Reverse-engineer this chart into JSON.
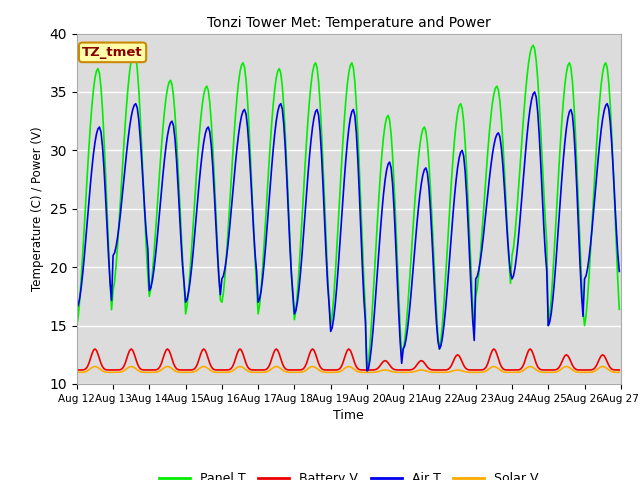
{
  "title": "Tonzi Tower Met: Temperature and Power",
  "xlabel": "Time",
  "ylabel": "Temperature (C) / Power (V)",
  "xlim_start": 0,
  "xlim_end": 360,
  "ylim": [
    10,
    40
  ],
  "yticks": [
    10,
    15,
    20,
    25,
    30,
    35,
    40
  ],
  "background_color": "#dcdcdc",
  "figure_color": "#ffffff",
  "annotation_text": "TZ_tmet",
  "annotation_facecolor": "#ffffaa",
  "annotation_edgecolor": "#cc8800",
  "annotation_textcolor": "#880000",
  "x_tick_labels": [
    "Aug 12",
    "Aug 13",
    "Aug 14",
    "Aug 15",
    "Aug 16",
    "Aug 17",
    "Aug 18",
    "Aug 19",
    "Aug 20",
    "Aug 21",
    "Aug 22",
    "Aug 23",
    "Aug 24",
    "Aug 25",
    "Aug 26",
    "Aug 27"
  ],
  "x_tick_positions": [
    0,
    24,
    48,
    72,
    96,
    120,
    144,
    168,
    192,
    216,
    240,
    264,
    288,
    312,
    336,
    360
  ],
  "panel_t_color": "#00ee00",
  "battery_v_color": "#ee0000",
  "air_t_color": "#0000ee",
  "solar_v_color": "#ffaa00",
  "line_width": 1.2,
  "legend_entries": [
    "Panel T",
    "Battery V",
    "Air T",
    "Solar V"
  ],
  "panel_t_peaks": [
    37.0,
    38.5,
    36.0,
    35.5,
    37.5,
    37.0,
    37.5,
    37.5,
    33.0,
    32.0,
    34.0,
    35.5,
    39.0,
    37.5,
    37.5
  ],
  "panel_t_mins": [
    15.0,
    18.0,
    17.5,
    16.0,
    17.0,
    16.0,
    15.5,
    15.0,
    11.0,
    13.0,
    13.0,
    17.5,
    21.0,
    15.0,
    15.0
  ],
  "air_t_peaks": [
    32.0,
    34.0,
    32.5,
    32.0,
    33.5,
    34.0,
    33.5,
    33.5,
    29.0,
    28.5,
    30.0,
    31.5,
    35.0,
    33.5,
    34.0
  ],
  "air_t_mins": [
    16.5,
    21.0,
    18.0,
    17.0,
    19.0,
    17.0,
    16.0,
    14.5,
    11.0,
    13.0,
    13.0,
    19.0,
    19.0,
    15.0,
    19.0
  ],
  "battery_v_base": 11.2,
  "battery_v_peaks": [
    13.0,
    13.0,
    13.0,
    13.0,
    13.0,
    13.0,
    13.0,
    13.0,
    12.0,
    12.0,
    12.5,
    13.0,
    13.0,
    12.5,
    12.5
  ],
  "solar_v_base": 11.0,
  "solar_v_peaks": [
    11.5,
    11.5,
    11.5,
    11.5,
    11.5,
    11.5,
    11.5,
    11.5,
    11.2,
    11.2,
    11.2,
    11.5,
    11.5,
    11.5,
    11.5
  ]
}
